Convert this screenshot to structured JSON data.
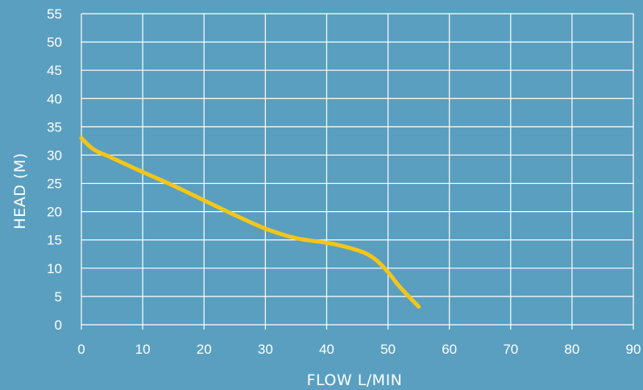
{
  "chart_data": {
    "type": "line",
    "title": "",
    "xlabel": "FLOW L/MIN",
    "ylabel": "HEAD (M)",
    "xlim": [
      0,
      90
    ],
    "ylim": [
      0,
      55
    ],
    "x_ticks": [
      0,
      10,
      20,
      30,
      40,
      50,
      60,
      70,
      80,
      90
    ],
    "y_ticks": [
      0,
      5,
      10,
      15,
      20,
      25,
      30,
      35,
      40,
      45,
      50,
      55
    ],
    "grid": true,
    "legend": "none",
    "series": [
      {
        "x": [
          0,
          2,
          5,
          10,
          15,
          20,
          25,
          30,
          35,
          40,
          43,
          46,
          48,
          50,
          52,
          55
        ],
        "y": [
          33,
          31,
          29.5,
          27,
          24.6,
          22,
          19.4,
          17,
          15.3,
          14.5,
          13.8,
          12.8,
          11.5,
          9.3,
          6.6,
          3.2
        ]
      }
    ]
  },
  "colors": {
    "background": "#5a9fc0",
    "grid": "#ffffff",
    "curve": "#f5c518",
    "text": "#ffffff"
  }
}
